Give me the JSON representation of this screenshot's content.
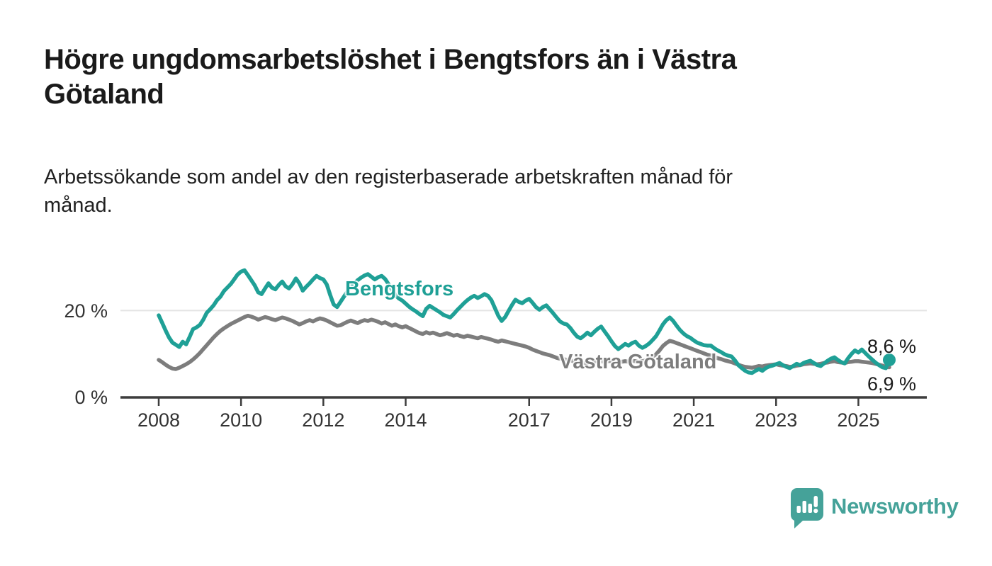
{
  "header": {
    "title_lines": [
      "Högre ungdomsarbetslöshet i Bengtsfors än i Västra",
      "Götaland"
    ],
    "title_full": "Högre ungdomsarbetslöshet i Bengtsfors än i Västra Götaland",
    "subtitle_lines": [
      "Arbetssökande som andel av den registerbaserade arbetskraften månad för",
      "månad."
    ],
    "subtitle_full": "Arbetssökande som andel av den registerbaserade arbetskraften månad för månad."
  },
  "colors": {
    "bengtsfors_teal": "#1FA096",
    "vastra_gray": "#7d7d7d",
    "axis": "#3d3d3d",
    "gridline": "#e4e4e4",
    "tick_text": "#333333",
    "title_text": "#1a1a1a",
    "logo_teal": "#45A299"
  },
  "chart_data": {
    "type": "line",
    "title": "",
    "xlabel": "",
    "ylabel": "",
    "x_unit": "month",
    "x_start": "2008-01",
    "x_end": "2025-10",
    "ylim": [
      0,
      32
    ],
    "grid": "single-horizontal-gridline-at-20",
    "legend_position": "inline-labels-on-lines",
    "yticks": [
      {
        "value": 20,
        "label": "20 %"
      },
      {
        "value": 0,
        "label": "0 %"
      }
    ],
    "xtick_years": [
      2008,
      2010,
      2012,
      2014,
      2017,
      2019,
      2021,
      2023,
      2025
    ],
    "annotations": [
      {
        "text": "8,6 %",
        "series": "Bengtsfors"
      },
      {
        "text": "6,9 %",
        "series": "Västra Götaland"
      }
    ],
    "series": [
      {
        "name": "Bengtsfors",
        "color": "#1FA096",
        "end_value": 8.6,
        "end_label": "8,6 %",
        "values": [
          18.9,
          17.2,
          15.4,
          13.8,
          12.6,
          12.1,
          11.6,
          12.8,
          12.2,
          13.9,
          15.7,
          16.1,
          16.7,
          17.9,
          19.5,
          20.3,
          21.2,
          22.4,
          23.2,
          24.5,
          25.3,
          26.1,
          27.2,
          28.3,
          29.0,
          29.3,
          28.2,
          27.0,
          25.8,
          24.2,
          23.8,
          25.1,
          26.3,
          25.3,
          24.9,
          25.9,
          26.7,
          25.6,
          25.1,
          26.1,
          27.4,
          26.3,
          24.6,
          25.5,
          26.3,
          27.2,
          28.0,
          27.5,
          27.2,
          26.0,
          23.6,
          21.4,
          20.8,
          22.0,
          23.2,
          24.4,
          25.6,
          26.2,
          27.0,
          27.6,
          28.1,
          28.4,
          27.8,
          27.2,
          27.7,
          28.0,
          27.3,
          26.1,
          24.8,
          23.6,
          22.8,
          22.3,
          21.6,
          20.9,
          20.3,
          19.8,
          19.2,
          18.7,
          20.4,
          21.1,
          20.6,
          20.1,
          19.6,
          19.0,
          18.7,
          18.4,
          19.2,
          20.1,
          20.9,
          21.7,
          22.4,
          23.0,
          23.4,
          22.9,
          23.3,
          23.8,
          23.4,
          22.4,
          20.6,
          18.8,
          17.6,
          18.5,
          19.9,
          21.3,
          22.5,
          22.0,
          21.7,
          22.3,
          22.7,
          21.8,
          20.8,
          20.2,
          20.8,
          21.2,
          20.3,
          19.4,
          18.4,
          17.5,
          17.0,
          16.8,
          16.0,
          14.9,
          14.0,
          13.6,
          14.2,
          14.9,
          14.3,
          15.1,
          15.8,
          16.3,
          15.2,
          14.1,
          12.9,
          11.8,
          11.1,
          11.7,
          12.3,
          11.9,
          12.5,
          12.8,
          11.9,
          11.4,
          11.8,
          12.4,
          13.2,
          14.1,
          15.4,
          16.8,
          17.8,
          18.4,
          17.6,
          16.5,
          15.5,
          14.7,
          14.1,
          13.7,
          13.1,
          12.6,
          12.3,
          12.0,
          11.9,
          11.9,
          11.3,
          10.8,
          10.4,
          9.9,
          9.6,
          9.4,
          8.5,
          7.4,
          6.7,
          6.1,
          5.7,
          5.6,
          6.1,
          6.5,
          6.1,
          6.7,
          7.1,
          7.3,
          7.6,
          7.9,
          7.4,
          7.0,
          6.7,
          7.2,
          7.7,
          7.4,
          7.9,
          8.2,
          8.4,
          7.9,
          7.4,
          7.2,
          7.8,
          8.4,
          8.9,
          9.2,
          8.6,
          8.1,
          7.8,
          9.0,
          10.0,
          10.8,
          10.3,
          11.0,
          10.2,
          9.4,
          8.7,
          8.0,
          7.4,
          6.9,
          6.7,
          8.6
        ]
      },
      {
        "name": "Västra Götaland",
        "color": "#7d7d7d",
        "end_value": 6.9,
        "end_label": "6,9 %",
        "values": [
          8.6,
          8.1,
          7.5,
          7.0,
          6.6,
          6.5,
          6.8,
          7.2,
          7.6,
          8.1,
          8.7,
          9.4,
          10.2,
          11.1,
          12.0,
          12.9,
          13.8,
          14.6,
          15.3,
          15.9,
          16.4,
          16.9,
          17.3,
          17.7,
          18.1,
          18.5,
          18.8,
          18.6,
          18.3,
          17.9,
          18.2,
          18.5,
          18.3,
          18.0,
          17.8,
          18.1,
          18.4,
          18.2,
          17.9,
          17.6,
          17.2,
          16.8,
          17.1,
          17.5,
          17.8,
          17.5,
          17.9,
          18.2,
          18.0,
          17.7,
          17.3,
          16.9,
          16.5,
          16.6,
          17.0,
          17.4,
          17.7,
          17.4,
          17.1,
          17.5,
          17.8,
          17.6,
          17.9,
          17.7,
          17.4,
          17.0,
          17.3,
          16.9,
          16.5,
          16.8,
          16.4,
          16.1,
          16.4,
          16.0,
          15.6,
          15.2,
          14.8,
          14.6,
          15.0,
          14.7,
          14.9,
          14.6,
          14.3,
          14.5,
          14.8,
          14.5,
          14.2,
          14.4,
          14.1,
          13.9,
          14.2,
          14.0,
          13.8,
          13.6,
          13.9,
          13.7,
          13.5,
          13.3,
          13.0,
          12.8,
          13.1,
          12.9,
          12.7,
          12.5,
          12.3,
          12.1,
          11.9,
          11.7,
          11.4,
          11.0,
          10.7,
          10.4,
          10.1,
          9.9,
          9.7,
          9.4,
          9.1,
          8.9,
          8.8,
          8.6,
          8.5,
          8.3,
          8.1,
          8.0,
          7.9,
          7.8,
          8.0,
          8.2,
          8.4,
          8.3,
          8.2,
          8.3,
          8.4,
          8.2,
          8.0,
          8.2,
          8.3,
          8.2,
          8.4,
          8.3,
          8.1,
          8.3,
          8.5,
          8.8,
          9.3,
          9.9,
          10.8,
          11.8,
          12.5,
          13.0,
          12.8,
          12.5,
          12.2,
          11.9,
          11.6,
          11.3,
          11.0,
          10.7,
          10.4,
          10.1,
          9.8,
          9.6,
          9.3,
          9.0,
          8.8,
          8.5,
          8.3,
          8.1,
          7.8,
          7.5,
          7.2,
          7.0,
          6.9,
          6.8,
          7.0,
          7.2,
          7.1,
          7.3,
          7.4,
          7.5,
          7.6,
          7.4,
          7.3,
          7.2,
          7.0,
          7.1,
          7.3,
          7.4,
          7.6,
          7.7,
          7.8,
          7.7,
          7.6,
          7.7,
          7.9,
          8.0,
          8.2,
          8.3,
          8.1,
          8.0,
          7.9,
          8.1,
          8.2,
          8.3,
          8.3,
          8.2,
          8.1,
          8.0,
          7.9,
          7.7,
          7.5,
          7.3,
          7.0,
          6.9
        ]
      }
    ]
  },
  "footer": {
    "brand": "Newsworthy",
    "logo_icon": "bar-chart-exclamation-speech-bubble-icon"
  }
}
